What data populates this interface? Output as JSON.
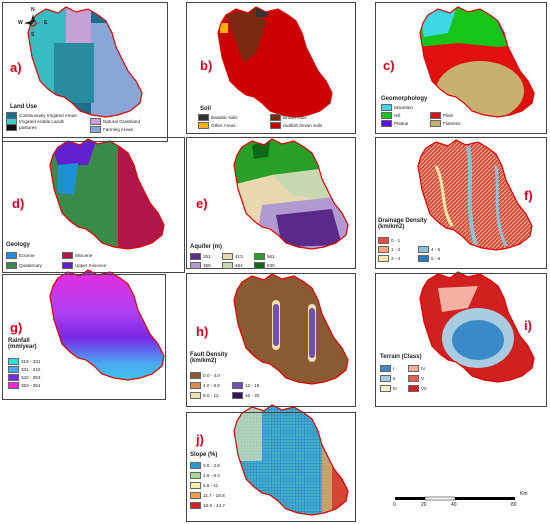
{
  "compass": {
    "n": "N",
    "e": "E",
    "s": "S",
    "w": "W"
  },
  "panels": {
    "a": {
      "label": "a)",
      "title": "Land Use",
      "legend": [
        {
          "text": "Continuously Irrigated Areas",
          "color": "#1b6f8a"
        },
        {
          "text": "Irrigated Arable Lands",
          "color": "#3fd0d0"
        },
        {
          "text": "pastures",
          "color": "#111111"
        },
        {
          "text": "Natural Grassland",
          "color": "#c8a0d8"
        },
        {
          "text": "Farming Areas",
          "color": "#8aa6d6"
        }
      ]
    },
    "b": {
      "label": "b)",
      "title": "Soil",
      "legend": [
        {
          "text": "Basaltic soils",
          "color": "#333333"
        },
        {
          "text": "Other Areas",
          "color": "#ffb000"
        },
        {
          "text": "Brown soils",
          "color": "#7a2a10"
        },
        {
          "text": "reddish brown soils",
          "color": "#cc0000"
        }
      ]
    },
    "c": {
      "label": "c)",
      "title": "Geomorphology",
      "legend": [
        {
          "text": "Mountain",
          "color": "#3cd8e8"
        },
        {
          "text": "Hill",
          "color": "#16c41a"
        },
        {
          "text": "Plain",
          "color": "#e01010"
        },
        {
          "text": "Plattue",
          "color": "#5a10e0"
        },
        {
          "text": "Flatness",
          "color": "#c8b070"
        }
      ]
    },
    "d": {
      "label": "d)",
      "title": "Geology",
      "legend": [
        {
          "text": "Eocene",
          "color": "#1e90d8"
        },
        {
          "text": "Miocene",
          "color": "#b0164a"
        },
        {
          "text": "Quaternary",
          "color": "#3a8a4a"
        },
        {
          "text": "Upper miocene",
          "color": "#6020d0"
        }
      ]
    },
    "e": {
      "label": "e)",
      "title": "Aquifer (m)",
      "legend": [
        {
          "text": "251",
          "color": "#5a2a8a"
        },
        {
          "text": "413",
          "color": "#e8d8b0"
        },
        {
          "text": "561",
          "color": "#28a028"
        },
        {
          "text": "358",
          "color": "#b09ad0"
        },
        {
          "text": "484",
          "color": "#c8d8b0"
        },
        {
          "text": "630",
          "color": "#0a6a1a"
        }
      ]
    },
    "f": {
      "label": "f)",
      "title": "Drainage Density (km/km2)",
      "legend": [
        {
          "text": "0 - 1",
          "color": "#e05040"
        },
        {
          "text": "1 - 2",
          "color": "#f4a880"
        },
        {
          "text": "3 - 4",
          "color": "#f8e8b0"
        },
        {
          "text": "4 - 5",
          "color": "#8ac0d8"
        },
        {
          "text": "5 - 6",
          "color": "#2a7ab8"
        }
      ]
    },
    "g": {
      "label": "g)",
      "title": "Rainfall (mm/year)",
      "legend": [
        {
          "text": "318 - 331",
          "color": "#30e0e0"
        },
        {
          "text": "331 - 342",
          "color": "#4aa8f0"
        },
        {
          "text": "342 - 353",
          "color": "#7a28e8"
        },
        {
          "text": "353 - 364",
          "color": "#f028e0"
        }
      ]
    },
    "h": {
      "label": "h)",
      "title": "Fault Density (km/km2)",
      "legend": [
        {
          "text": "0.0 - 4.0",
          "color": "#8a5a30"
        },
        {
          "text": "4.0 - 8.0",
          "color": "#d89050"
        },
        {
          "text": "12 - 16",
          "color": "#7050b0"
        },
        {
          "text": "8.0 - 12",
          "color": "#f0e0b0"
        },
        {
          "text": "16 - 20",
          "color": "#3a1060"
        }
      ]
    },
    "i": {
      "label": "i)",
      "title": "Terrain (Class)",
      "legend": [
        {
          "text": "I",
          "color": "#3a8ac8"
        },
        {
          "text": "IV",
          "color": "#f4b0a0"
        },
        {
          "text": "II",
          "color": "#a8cce0"
        },
        {
          "text": "V",
          "color": "#f06050"
        },
        {
          "text": "III",
          "color": "#f8f0c8"
        },
        {
          "text": "VII",
          "color": "#d02020"
        }
      ]
    },
    "j": {
      "label": "j)",
      "title": "Slope (%)",
      "legend": [
        {
          "text": "0.0 - 2.8",
          "color": "#2a9ad0"
        },
        {
          "text": "2.8 - 6.4",
          "color": "#a8d890"
        },
        {
          "text": "6.5 - 11",
          "color": "#f8f0b0"
        },
        {
          "text": "11.7 - 18.8",
          "color": "#f0a050"
        },
        {
          "text": "18.9 - 44.7",
          "color": "#d82020"
        }
      ]
    }
  },
  "scalebar": {
    "ticks": [
      "0",
      "20",
      "40",
      "80"
    ],
    "unit": "Km"
  }
}
